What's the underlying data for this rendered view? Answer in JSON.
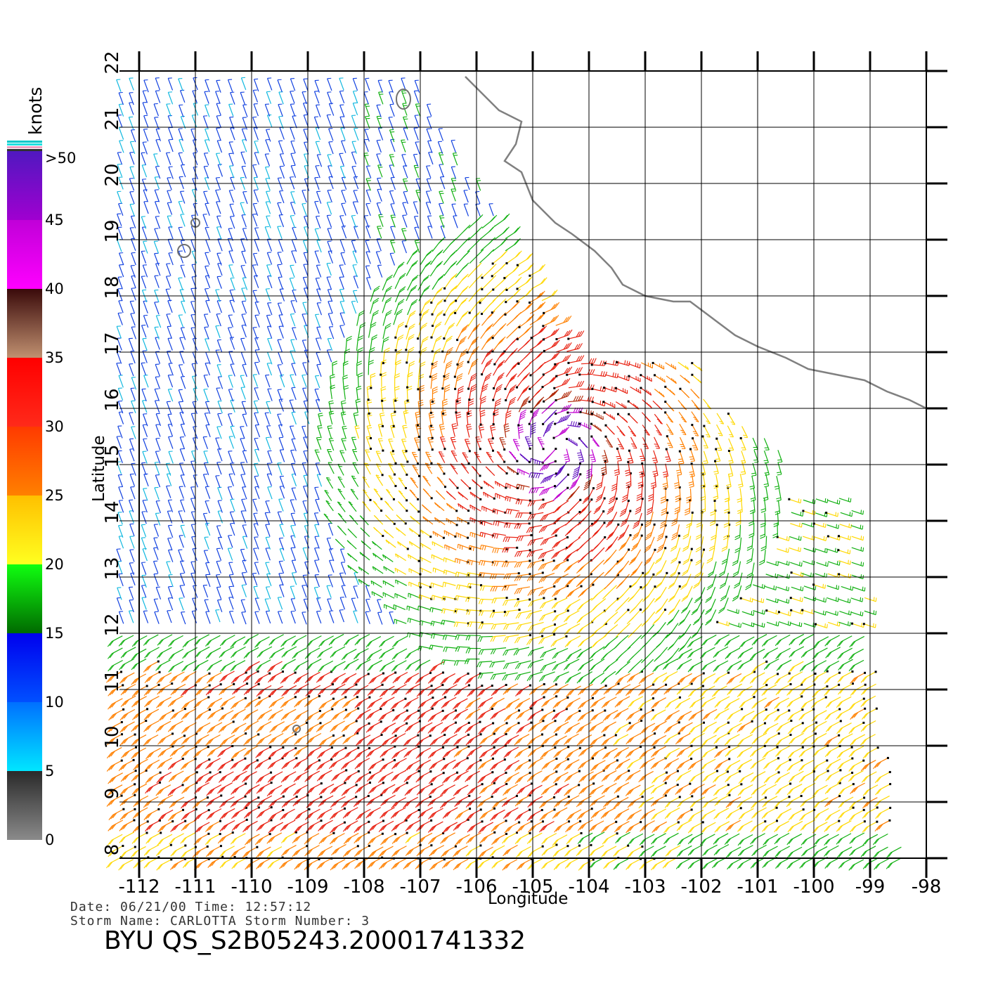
{
  "colorbar": {
    "title": "knots",
    "labels": [
      ">50",
      "45",
      "40",
      "35",
      "30",
      "25",
      "20",
      "15",
      "10",
      "5",
      "0"
    ],
    "bands": [
      {
        "from": 0,
        "to": 5,
        "colors": [
          "#8a8a8a",
          "#2a2a2a"
        ]
      },
      {
        "from": 5,
        "to": 10,
        "colors": [
          "#00e6ff",
          "#0070ff"
        ]
      },
      {
        "from": 10,
        "to": 15,
        "colors": [
          "#0050ff",
          "#0000ee"
        ]
      },
      {
        "from": 15,
        "to": 20,
        "colors": [
          "#006a00",
          "#10ff10"
        ]
      },
      {
        "from": 20,
        "to": 25,
        "colors": [
          "#ffff20",
          "#ffc000"
        ]
      },
      {
        "from": 25,
        "to": 30,
        "colors": [
          "#ff8000",
          "#ff3a00"
        ]
      },
      {
        "from": 30,
        "to": 35,
        "colors": [
          "#ff2a1a",
          "#ff0000"
        ]
      },
      {
        "from": 35,
        "to": 40,
        "colors": [
          "#c09070",
          "#3a0a0a"
        ]
      },
      {
        "from": 40,
        "to": 45,
        "colors": [
          "#ff00ff",
          "#c000d8"
        ]
      },
      {
        "from": 45,
        "to": 50,
        "colors": [
          "#a000d0",
          "#5018c0"
        ]
      }
    ]
  },
  "map": {
    "lon_range": [
      -112,
      -98
    ],
    "lat_range": [
      8,
      22
    ],
    "xlabel": "Longitude",
    "ylabel": "Latitude",
    "lon_ticks": [
      "-112",
      "-111",
      "-110",
      "-109",
      "-108",
      "-107",
      "-106",
      "-105",
      "-104",
      "-103",
      "-102",
      "-101",
      "-100",
      "-99",
      "-98"
    ],
    "lat_ticks": [
      "8",
      "9",
      "10",
      "11",
      "12",
      "13",
      "14",
      "15",
      "16",
      "17",
      "18",
      "19",
      "20",
      "21",
      "22"
    ],
    "storm_center": {
      "lon": -104.6,
      "lat": 15.3
    },
    "coastline_color": "#808080"
  },
  "info": {
    "date_line": "Date: 06/21/00   Time: 12:57:12",
    "storm_line": "Storm Name: CARLOTTA   Storm Number: 3",
    "product": "BYU QS_S2B05243.20001741332"
  }
}
